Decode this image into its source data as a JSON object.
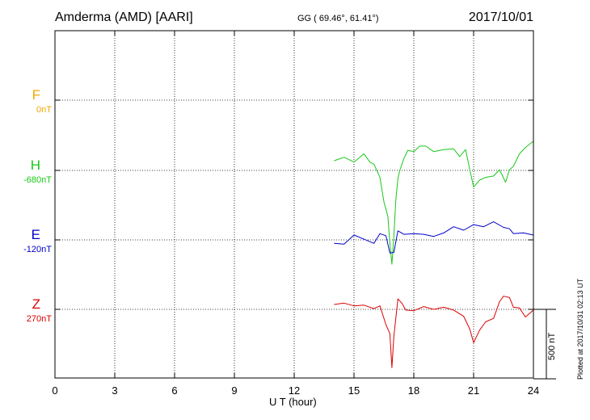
{
  "header": {
    "station": "Amderma (AMD)  [AARI]",
    "coords": "GG ( 69.46°,  61.41°)",
    "date": "2017/10/01"
  },
  "components": [
    {
      "letter": "F",
      "baseline": "0nT",
      "color": "#f0a800"
    },
    {
      "letter": "H",
      "baseline": "-680nT",
      "color": "#18c818"
    },
    {
      "letter": "E",
      "baseline": "-120nT",
      "color": "#0000cc"
    },
    {
      "letter": "Z",
      "baseline": "270nT",
      "color": "#dd0000"
    }
  ],
  "scale_bar": {
    "label": "500 nT"
  },
  "plotted_note": "Plotted at 2017/10/31 02:13 UT",
  "chart_data": {
    "type": "line",
    "xlabel": "U T (hour)",
    "xlim": [
      0,
      24
    ],
    "xticks": [
      "0",
      "3",
      "6",
      "9",
      "12",
      "15",
      "18",
      "21",
      "24"
    ],
    "grid": true,
    "series": [
      {
        "name": "H",
        "color": "#18c818",
        "x": [
          14,
          14.5,
          15,
          15.5,
          15.8,
          16.0,
          16.3,
          16.5,
          16.7,
          16.8,
          16.9,
          17.0,
          17.1,
          17.2,
          17.3,
          17.5,
          17.7,
          18.0,
          18.3,
          18.6,
          19.0,
          19.5,
          20.0,
          20.3,
          20.6,
          20.8,
          21.0,
          21.3,
          21.6,
          22.0,
          22.3,
          22.6,
          22.8,
          23.0,
          23.3,
          23.6,
          24
        ],
        "y": [
          -540,
          -490,
          -560,
          -440,
          -560,
          -590,
          -780,
          -1130,
          -1340,
          -1730,
          -2030,
          -1630,
          -1100,
          -800,
          -680,
          -510,
          -390,
          -410,
          -330,
          -330,
          -410,
          -380,
          -370,
          -480,
          -380,
          -660,
          -920,
          -820,
          -780,
          -760,
          -670,
          -850,
          -670,
          -620,
          -440,
          -350,
          -260
        ]
      },
      {
        "name": "E",
        "color": "#0000cc",
        "x": [
          14,
          14.5,
          15,
          15.5,
          16.0,
          16.3,
          16.6,
          16.8,
          17.0,
          17.2,
          17.5,
          18.0,
          18.5,
          19.0,
          19.5,
          20.0,
          20.5,
          21.0,
          21.5,
          22.0,
          22.5,
          22.8,
          23.0,
          23.5,
          24
        ],
        "y": [
          -170,
          -180,
          -50,
          -110,
          -170,
          -30,
          -60,
          -310,
          -300,
          10,
          -40,
          -30,
          -40,
          -70,
          -20,
          70,
          20,
          100,
          70,
          140,
          60,
          40,
          -30,
          -20,
          -50
        ]
      },
      {
        "name": "Z",
        "color": "#dd0000",
        "x": [
          14,
          14.5,
          15,
          15.5,
          16.0,
          16.3,
          16.6,
          16.8,
          16.9,
          17.0,
          17.1,
          17.2,
          17.4,
          17.6,
          18.0,
          18.5,
          19.0,
          19.5,
          20.0,
          20.5,
          20.8,
          21.0,
          21.3,
          21.6,
          22.0,
          22.3,
          22.5,
          22.8,
          23.0,
          23.3,
          23.6,
          24
        ],
        "y": [
          340,
          360,
          320,
          330,
          280,
          320,
          50,
          -80,
          -570,
          -120,
          150,
          420,
          360,
          260,
          250,
          310,
          270,
          300,
          260,
          170,
          -10,
          -210,
          -30,
          90,
          140,
          380,
          460,
          440,
          300,
          290,
          160,
          260
        ]
      }
    ]
  }
}
